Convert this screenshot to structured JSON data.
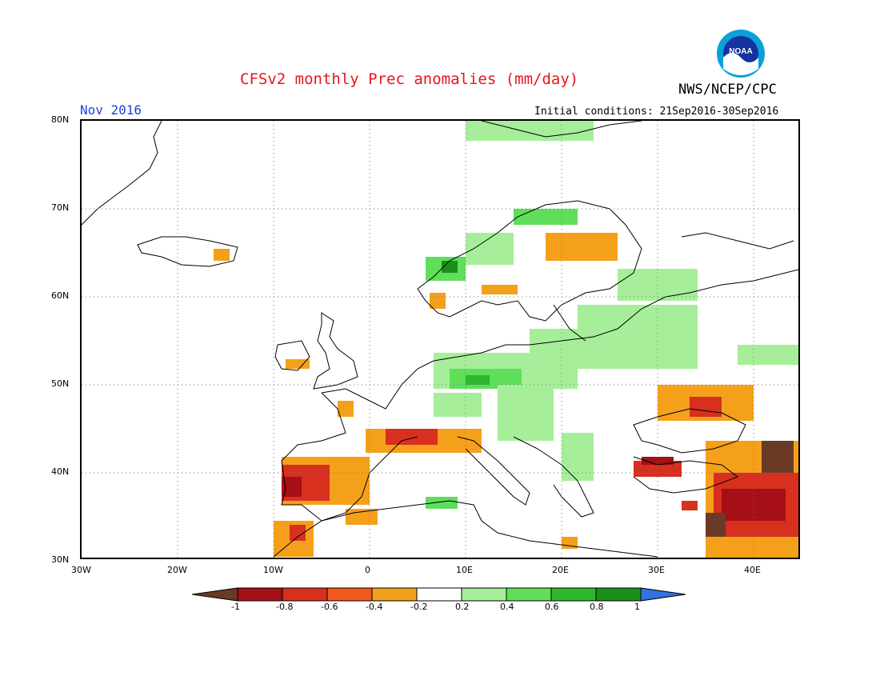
{
  "title": "CFSv2 monthly Prec anomalies (mm/day)",
  "agency": "NWS/NCEP/CPC",
  "logo_text": "NOAA",
  "month_label": "Nov 2016",
  "initial_conditions": "Initial conditions: 21Sep2016-30Sep2016",
  "lat_ticks": [
    "80N",
    "70N",
    "60N",
    "50N",
    "40N",
    "30N"
  ],
  "lon_ticks": [
    "30W",
    "20W",
    "10W",
    "0",
    "10E",
    "20E",
    "30E",
    "40E"
  ],
  "colorbar": {
    "labels": [
      "-1",
      "-0.8",
      "-0.6",
      "-0.4",
      "-0.2",
      "0.2",
      "0.4",
      "0.6",
      "0.8",
      "1"
    ],
    "colors": [
      "#6b3a26",
      "#a50f15",
      "#d7301f",
      "#f25a1d",
      "#f5a01a",
      "#ffffff",
      "#a6ee9a",
      "#5fde5a",
      "#2eb82e",
      "#1a8f1a",
      "#2f74e0"
    ]
  },
  "colors": {
    "title": "#e8141e",
    "month": "#1f3fe0"
  }
}
